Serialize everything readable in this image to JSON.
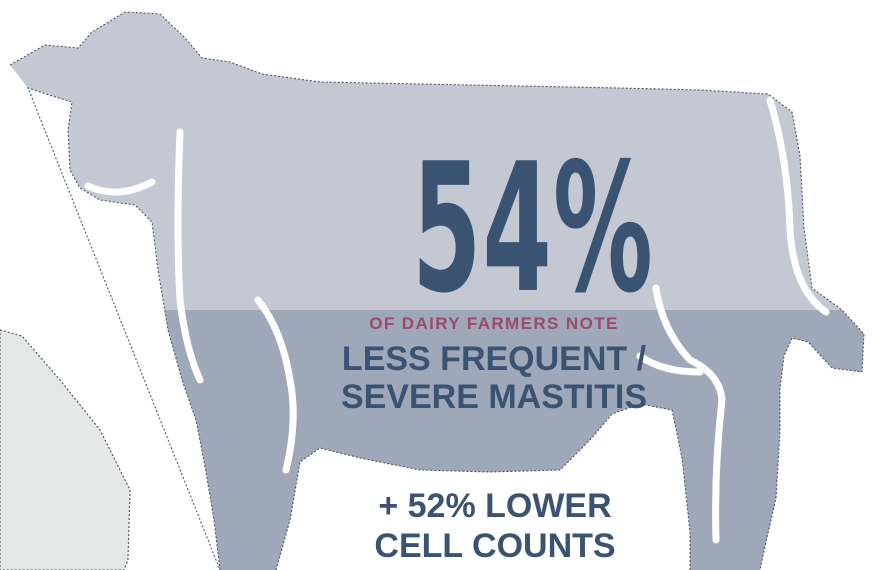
{
  "stat": {
    "percent": "54%",
    "subtitle": "OF DAIRY FARMERS NOTE",
    "line1": "LESS FREQUENT /",
    "line2": "SEVERE MASTITIS"
  },
  "secondary": {
    "line1": "+ 52% LOWER",
    "line2": "CELL COUNTS"
  },
  "graphic": {
    "illustration_icon": "cow-silhouette-icon",
    "fill_level_fraction": 0.54
  },
  "colors": {
    "background": "#ffffff",
    "cow_light": "#c3c8d3",
    "cow_dark": "#9ea8b8",
    "primary_text": "#3b5373",
    "accent_text": "#9b4a6b",
    "gray_shape": "#e6e8e7",
    "outline": "#4c5466"
  }
}
